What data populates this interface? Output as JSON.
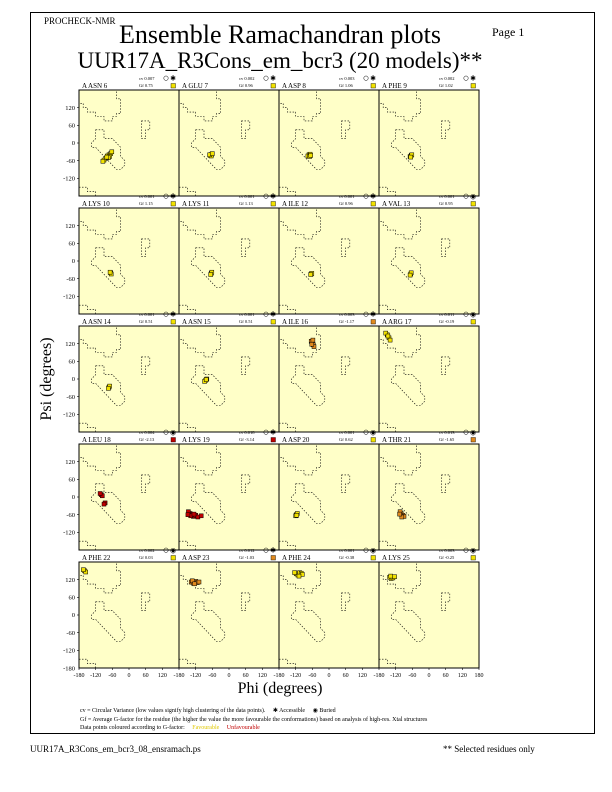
{
  "header": {
    "program": "PROCHECK-NMR",
    "page": "Page  1",
    "title": "Ensemble Ramachandran plots",
    "subtitle": "UUR17A_R3Cons_em_bcr3 (20 models)**"
  },
  "chart_data": {
    "type": "scatter",
    "title": "Ensemble Ramachandran plots",
    "xlabel": "Phi (degrees)",
    "ylabel": "Psi (degrees)",
    "xlim": [
      -180,
      180
    ],
    "ylim": [
      -180,
      180
    ],
    "x_ticks": [
      "-180",
      "-120",
      "-60",
      "0",
      "60",
      "120",
      "180"
    ],
    "y_ticks": [
      "120",
      "60",
      "0",
      "-60",
      "-120",
      "-180"
    ],
    "grid": false,
    "panels": [
      {
        "residue": "A ASN 6",
        "cv": "cv 0.007",
        "gf": "Gf 0.75",
        "access": "accessible",
        "gf_color": "#f2e200",
        "points": [
          [
            -72,
            -40
          ],
          [
            -66,
            -36
          ],
          [
            -78,
            -44
          ],
          [
            -70,
            -46
          ],
          [
            -84,
            -52
          ],
          [
            -90,
            -58
          ],
          [
            -94,
            -62
          ],
          [
            -62,
            -30
          ],
          [
            -74,
            -50
          ],
          [
            -80,
            -48
          ]
        ]
      },
      {
        "residue": "A GLU 7",
        "cv": "cv 0.002",
        "gf": "Gf 0.96",
        "access": "accessible",
        "gf_color": "#f2e200",
        "points": [
          [
            -66,
            -40
          ],
          [
            -62,
            -38
          ],
          [
            -68,
            -42
          ],
          [
            -64,
            -44
          ],
          [
            -70,
            -40
          ],
          [
            -60,
            -36
          ]
        ]
      },
      {
        "residue": "A ASP 8",
        "cv": "cv 0.003",
        "gf": "Gf 1.06",
        "access": "accessible",
        "gf_color": "#f2e200",
        "points": [
          [
            -72,
            -40
          ],
          [
            -68,
            -38
          ],
          [
            -76,
            -44
          ],
          [
            -70,
            -46
          ],
          [
            -66,
            -42
          ]
        ]
      },
      {
        "residue": "A PHE 9",
        "cv": "cv 0.002",
        "gf": "Gf 1.02",
        "access": "accessible",
        "gf_color": "#f2e200",
        "points": [
          [
            -64,
            -42
          ],
          [
            -68,
            -46
          ],
          [
            -62,
            -40
          ],
          [
            -66,
            -48
          ]
        ]
      },
      {
        "residue": "A LYS 10",
        "cv": "cv 0.001",
        "gf": "Gf 1.15",
        "access": "accessible",
        "gf_color": "#f2e200",
        "points": [
          [
            -66,
            -40
          ],
          [
            -64,
            -44
          ],
          [
            -68,
            -38
          ]
        ]
      },
      {
        "residue": "A LYS 11",
        "cv": "cv 0.001",
        "gf": "Gf 1.13",
        "access": "accessible",
        "gf_color": "#f2e200",
        "points": [
          [
            -64,
            -42
          ],
          [
            -62,
            -38
          ],
          [
            -66,
            -46
          ]
        ]
      },
      {
        "residue": "A ILE 12",
        "cv": "cv 0.001",
        "gf": "Gf 0.96",
        "access": "accessible",
        "gf_color": "#f2e200",
        "points": [
          [
            -64,
            -44
          ],
          [
            -62,
            -42
          ],
          [
            -66,
            -46
          ]
        ]
      },
      {
        "residue": "A VAL 13",
        "cv": "cv 0.001",
        "gf": "Gf 0.95",
        "access": "buried",
        "gf_color": "#f2e200",
        "points": [
          [
            -66,
            -44
          ],
          [
            -64,
            -40
          ],
          [
            -68,
            -48
          ]
        ]
      },
      {
        "residue": "A ASN 14",
        "cv": "cv 0.001",
        "gf": "Gf 0.51",
        "access": "accessible",
        "gf_color": "#f2e200",
        "points": [
          [
            -72,
            -28
          ],
          [
            -70,
            -24
          ],
          [
            -74,
            -32
          ]
        ]
      },
      {
        "residue": "A ASN 15",
        "cv": "cv 0.001",
        "gf": "Gf 0.51",
        "access": "accessible",
        "gf_color": "#f2e200",
        "points": [
          [
            -84,
            -4
          ],
          [
            -80,
            0
          ],
          [
            -88,
            -8
          ],
          [
            -82,
            -2
          ]
        ]
      },
      {
        "residue": "A ILE 16",
        "cv": "cv 0.003",
        "gf": "Gf -1.17",
        "access": "accessible",
        "gf_color": "#e08a1e",
        "points": [
          [
            -60,
            122
          ],
          [
            -56,
            116
          ],
          [
            -64,
            128
          ],
          [
            -58,
            132
          ],
          [
            -54,
            110
          ],
          [
            -62,
            118
          ]
        ]
      },
      {
        "residue": "A ARG 17",
        "cv": "cv 0.011",
        "gf": "Gf -0.19",
        "access": "buried",
        "gf_color": "#f2e200",
        "points": [
          [
            -150,
            150
          ],
          [
            -144,
            140
          ],
          [
            -156,
            156
          ],
          [
            -140,
            132
          ],
          [
            -148,
            146
          ]
        ]
      },
      {
        "residue": "A LEU 18",
        "cv": "cv 0.004",
        "gf": "Gf -2.13",
        "access": "buried",
        "gf_color": "#c00000",
        "points": [
          [
            -100,
            8
          ],
          [
            -96,
            4
          ],
          [
            -104,
            12
          ],
          [
            -86,
            -20
          ],
          [
            -90,
            -24
          ]
        ]
      },
      {
        "residue": "A LYS 19",
        "cv": "cv 0.018",
        "gf": "Gf -3.14",
        "access": "accessible",
        "gf_color": "#c00000",
        "points": [
          [
            -140,
            -56
          ],
          [
            -134,
            -60
          ],
          [
            -146,
            -50
          ],
          [
            -128,
            -66
          ],
          [
            -120,
            -62
          ],
          [
            -112,
            -68
          ],
          [
            -100,
            -64
          ],
          [
            -138,
            -64
          ],
          [
            -126,
            -58
          ],
          [
            -148,
            -60
          ]
        ]
      },
      {
        "residue": "A ASP 20",
        "cv": "cv 0.001",
        "gf": "Gf 0.62",
        "access": "buried",
        "gf_color": "#f2e200",
        "points": [
          [
            -118,
            -60
          ],
          [
            -114,
            -56
          ],
          [
            -120,
            -64
          ],
          [
            -116,
            -62
          ]
        ]
      },
      {
        "residue": "A THR 21",
        "cv": "cv 0.013",
        "gf": "Gf -1.65",
        "access": "buried",
        "gf_color": "#e08a1e",
        "points": [
          [
            -100,
            -56
          ],
          [
            -94,
            -62
          ],
          [
            -104,
            -50
          ],
          [
            -90,
            -66
          ],
          [
            -98,
            -68
          ],
          [
            -106,
            -58
          ]
        ]
      },
      {
        "residue": "A PHE 22",
        "cv": "cv 0.002",
        "gf": "Gf 0.03",
        "access": "buried",
        "gf_color": "#f2e200",
        "points": [
          [
            -160,
            150
          ],
          [
            -156,
            146
          ],
          [
            -164,
            154
          ]
        ]
      },
      {
        "residue": "A ASP 23",
        "cv": "cv 0.012",
        "gf": "Gf -1.03",
        "access": "accessible",
        "gf_color": "#e08a1e",
        "points": [
          [
            -136,
            112
          ],
          [
            -128,
            108
          ],
          [
            -120,
            114
          ],
          [
            -114,
            110
          ],
          [
            -132,
            116
          ],
          [
            -124,
            106
          ],
          [
            -108,
            112
          ]
        ]
      },
      {
        "residue": "A PHE 24",
        "cv": "cv 0.001",
        "gf": "Gf -0.38",
        "access": "buried",
        "gf_color": "#f2e200",
        "points": [
          [
            -118,
            140
          ],
          [
            -112,
            136
          ],
          [
            -106,
            144
          ],
          [
            -100,
            142
          ],
          [
            -124,
            144
          ],
          [
            -96,
            138
          ],
          [
            -108,
            132
          ]
        ]
      },
      {
        "residue": "A LYS 25",
        "cv": "cv 0.003",
        "gf": "Gf -0.25",
        "access": "buried",
        "gf_color": "#f2e200",
        "points": [
          [
            -142,
            128
          ],
          [
            -136,
            124
          ],
          [
            -130,
            126
          ],
          [
            -124,
            130
          ],
          [
            -138,
            132
          ]
        ]
      }
    ]
  },
  "legend": {
    "cv_text": "cv = Circular Variance (low values signify high clustering of the data points).",
    "accessible": "Accessible",
    "buried": "Buried",
    "gf_text": "Gf = Average G-factor for the residue (the higher the value the more favourable the conformations) based on analysis of high-res. Xtal structures",
    "colour_text": "Data points coloured according to G-factor:",
    "favourable": "Favourable",
    "unfavourable": "Unfavourable"
  },
  "footer": {
    "left": "UUR17A_R3Cons_em_bcr3_08_ensramach.ps",
    "right": "** Selected residues only"
  },
  "colors": {
    "panel_bg": "#ffffc8",
    "core_outline": "#000000",
    "favourable": "#f2e200",
    "unfavourable": "#c00000"
  }
}
